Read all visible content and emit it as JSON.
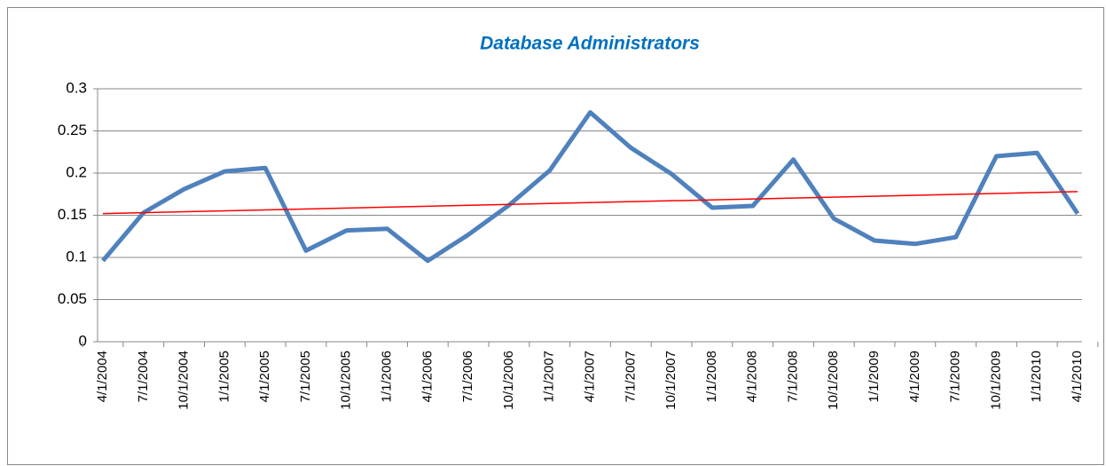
{
  "chart_data": {
    "type": "line",
    "title": "Database Administrators",
    "categories": [
      "4/1/2004",
      "7/1/2004",
      "10/1/2004",
      "1/1/2005",
      "4/1/2005",
      "7/1/2005",
      "10/1/2005",
      "1/1/2006",
      "4/1/2006",
      "7/1/2006",
      "10/1/2006",
      "1/1/2007",
      "4/1/2007",
      "7/1/2007",
      "10/1/2007",
      "1/1/2008",
      "4/1/2008",
      "7/1/2008",
      "10/1/2008",
      "1/1/2009",
      "4/1/2009",
      "7/1/2009",
      "10/1/2009",
      "1/1/2010",
      "4/1/2010"
    ],
    "series": [
      {
        "name": "Database Administrators",
        "color": "#4f81bd",
        "values": [
          0.096,
          0.153,
          0.181,
          0.202,
          0.206,
          0.108,
          0.132,
          0.134,
          0.096,
          0.127,
          0.162,
          0.203,
          0.272,
          0.23,
          0.199,
          0.159,
          0.161,
          0.216,
          0.146,
          0.12,
          0.116,
          0.124,
          0.22,
          0.224,
          0.152
        ]
      }
    ],
    "trendline": {
      "color": "#ff0000",
      "values": [
        0.152,
        0.178
      ]
    },
    "ylim": [
      0,
      0.3
    ],
    "yticks": [
      0,
      0.05,
      0.1,
      0.15,
      0.2,
      0.25,
      0.3
    ],
    "grid": true
  }
}
